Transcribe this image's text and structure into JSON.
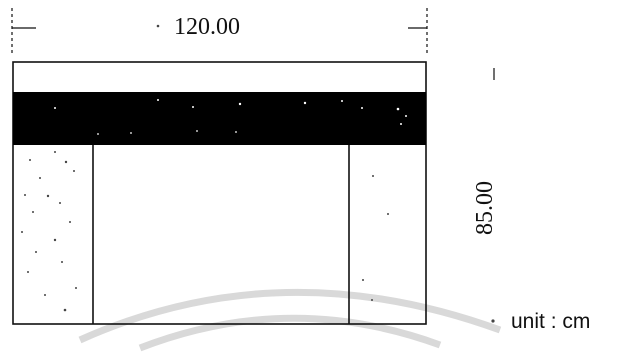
{
  "dimensions": {
    "width_label": "120.00",
    "height_label": "85.00"
  },
  "unit_label": "unit : cm",
  "colors": {
    "line": "#111111",
    "band": "#000000",
    "background": "#ffffff",
    "watermark": "#d9d9d9"
  }
}
